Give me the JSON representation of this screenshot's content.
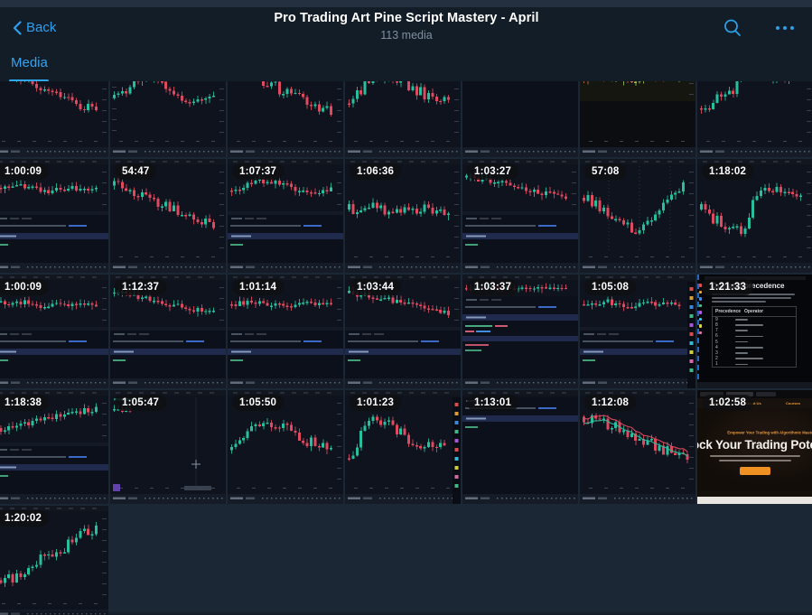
{
  "header": {
    "back_label": "Back",
    "title": "Pro Trading Art Pine Script Mastery - April",
    "subtitle": "113 media"
  },
  "tabs": [
    {
      "label": "Media",
      "active": true
    }
  ],
  "colors": {
    "accent_blue": "#2f9ff0",
    "header_bg": "#131d27",
    "window_strip": "#243040",
    "grid_bg": "#1b2735",
    "thumb_bg": "#0e131d",
    "badge_bg": "rgba(16,16,18,0.84)",
    "candle_up": "#29bf9e",
    "candle_down": "#de4a60",
    "web_orange": "#ef9122"
  },
  "doc_thumb": {
    "heading": "Operator precedence",
    "col_precedence": "Precedence",
    "col_operator": "Operator",
    "precedences": [
      "9",
      "8",
      "7",
      "6",
      "5",
      "4",
      "3",
      "2",
      "1"
    ]
  },
  "web_thumb": {
    "nav_links": [
      "Home",
      "About Us",
      "Courses"
    ],
    "tagline": "Empower Your Trading with Algorithmic Mastery",
    "headline": "ock Your Trading Poten"
  },
  "grid": {
    "items": [
      {
        "row": 1,
        "col": 1,
        "duration": null,
        "variant": "chart",
        "trend": "down",
        "seed": 11,
        "flags": []
      },
      {
        "row": 1,
        "col": 2,
        "duration": null,
        "variant": "chart",
        "trend": "updown",
        "seed": 12,
        "flags": [
          "leftAxis"
        ]
      },
      {
        "row": 1,
        "col": 3,
        "duration": null,
        "variant": "chart",
        "trend": "down",
        "seed": 13,
        "flags": []
      },
      {
        "row": 1,
        "col": 4,
        "duration": null,
        "variant": "chart",
        "trend": "riseFall",
        "seed": 14,
        "flags": []
      },
      {
        "row": 1,
        "col": 5,
        "duration": null,
        "variant": "code",
        "trend": "flat",
        "seed": 15,
        "flags": []
      },
      {
        "row": 1,
        "col": 6,
        "duration": null,
        "variant": "chart",
        "trend": "flat",
        "seed": 16,
        "flags": [
          "olive",
          "yellowLine"
        ]
      },
      {
        "row": 1,
        "col": 7,
        "duration": null,
        "variant": "chart",
        "trend": "upflat",
        "seed": 17,
        "flags": []
      },
      {
        "row": 2,
        "col": 1,
        "duration": "1:00:09",
        "variant": "chartcode",
        "trend": "flat",
        "seed": 21,
        "flags": []
      },
      {
        "row": 2,
        "col": 2,
        "duration": "54:47",
        "variant": "chart",
        "trend": "down",
        "seed": 22,
        "flags": []
      },
      {
        "row": 2,
        "col": 3,
        "duration": "1:07:37",
        "variant": "chartcode",
        "trend": "updown",
        "seed": 23,
        "flags": []
      },
      {
        "row": 2,
        "col": 4,
        "duration": "1:06:36",
        "variant": "chart",
        "trend": "flat",
        "seed": 24,
        "flags": []
      },
      {
        "row": 2,
        "col": 5,
        "duration": "1:03:27",
        "variant": "chartcode",
        "trend": "down",
        "seed": 25,
        "flags": []
      },
      {
        "row": 2,
        "col": 6,
        "duration": "57:08",
        "variant": "chart",
        "trend": "v",
        "seed": 26,
        "flags": [
          "dashedGrid"
        ]
      },
      {
        "row": 2,
        "col": 7,
        "duration": "1:18:02",
        "variant": "chart",
        "trend": "vplateau",
        "seed": 27,
        "flags": []
      },
      {
        "row": 3,
        "col": 1,
        "duration": "1:00:09",
        "variant": "chartcode",
        "trend": "flat",
        "seed": 31,
        "flags": []
      },
      {
        "row": 3,
        "col": 2,
        "duration": "1:12:37",
        "variant": "chartcode",
        "trend": "down",
        "seed": 32,
        "flags": []
      },
      {
        "row": 3,
        "col": 3,
        "duration": "1:01:14",
        "variant": "chartcode",
        "trend": "flat",
        "seed": 33,
        "flags": []
      },
      {
        "row": 3,
        "col": 4,
        "duration": "1:03:44",
        "variant": "chartcode",
        "trend": "down",
        "seed": 34,
        "flags": []
      },
      {
        "row": 3,
        "col": 5,
        "duration": "1:03:37",
        "variant": "code2",
        "trend": "flat",
        "seed": 35,
        "flags": []
      },
      {
        "row": 3,
        "col": 6,
        "duration": "1:05:08",
        "variant": "chartcode",
        "trend": "flat",
        "seed": 36,
        "flags": [
          "rightIcons"
        ]
      },
      {
        "row": 3,
        "col": 7,
        "duration": "1:21:33",
        "variant": "doc",
        "trend": "flat",
        "seed": 37,
        "flags": []
      },
      {
        "row": 4,
        "col": 1,
        "duration": "1:18:38",
        "variant": "chartcode",
        "trend": "up",
        "seed": 41,
        "flags": []
      },
      {
        "row": 4,
        "col": 2,
        "duration": "1:05:47",
        "variant": "blank",
        "trend": "flat",
        "seed": 42,
        "flags": []
      },
      {
        "row": 4,
        "col": 3,
        "duration": "1:05:50",
        "variant": "chart",
        "trend": "riseFall",
        "seed": 43,
        "flags": []
      },
      {
        "row": 4,
        "col": 4,
        "duration": "1:01:23",
        "variant": "chart",
        "trend": "peakDecline",
        "seed": 44,
        "flags": [
          "rightIcons"
        ]
      },
      {
        "row": 4,
        "col": 5,
        "duration": "1:13:01",
        "variant": "code",
        "trend": "flat",
        "seed": 45,
        "flags": []
      },
      {
        "row": 4,
        "col": 6,
        "duration": "1:12:08",
        "variant": "chart",
        "trend": "down",
        "seed": 46,
        "flags": [
          "ma"
        ]
      },
      {
        "row": 4,
        "col": 7,
        "duration": "1:02:58",
        "variant": "web",
        "trend": "flat",
        "seed": 47,
        "flags": []
      },
      {
        "row": 5,
        "col": 1,
        "duration": "1:20:02",
        "variant": "chart",
        "trend": "step",
        "seed": 48,
        "flags": []
      }
    ]
  }
}
